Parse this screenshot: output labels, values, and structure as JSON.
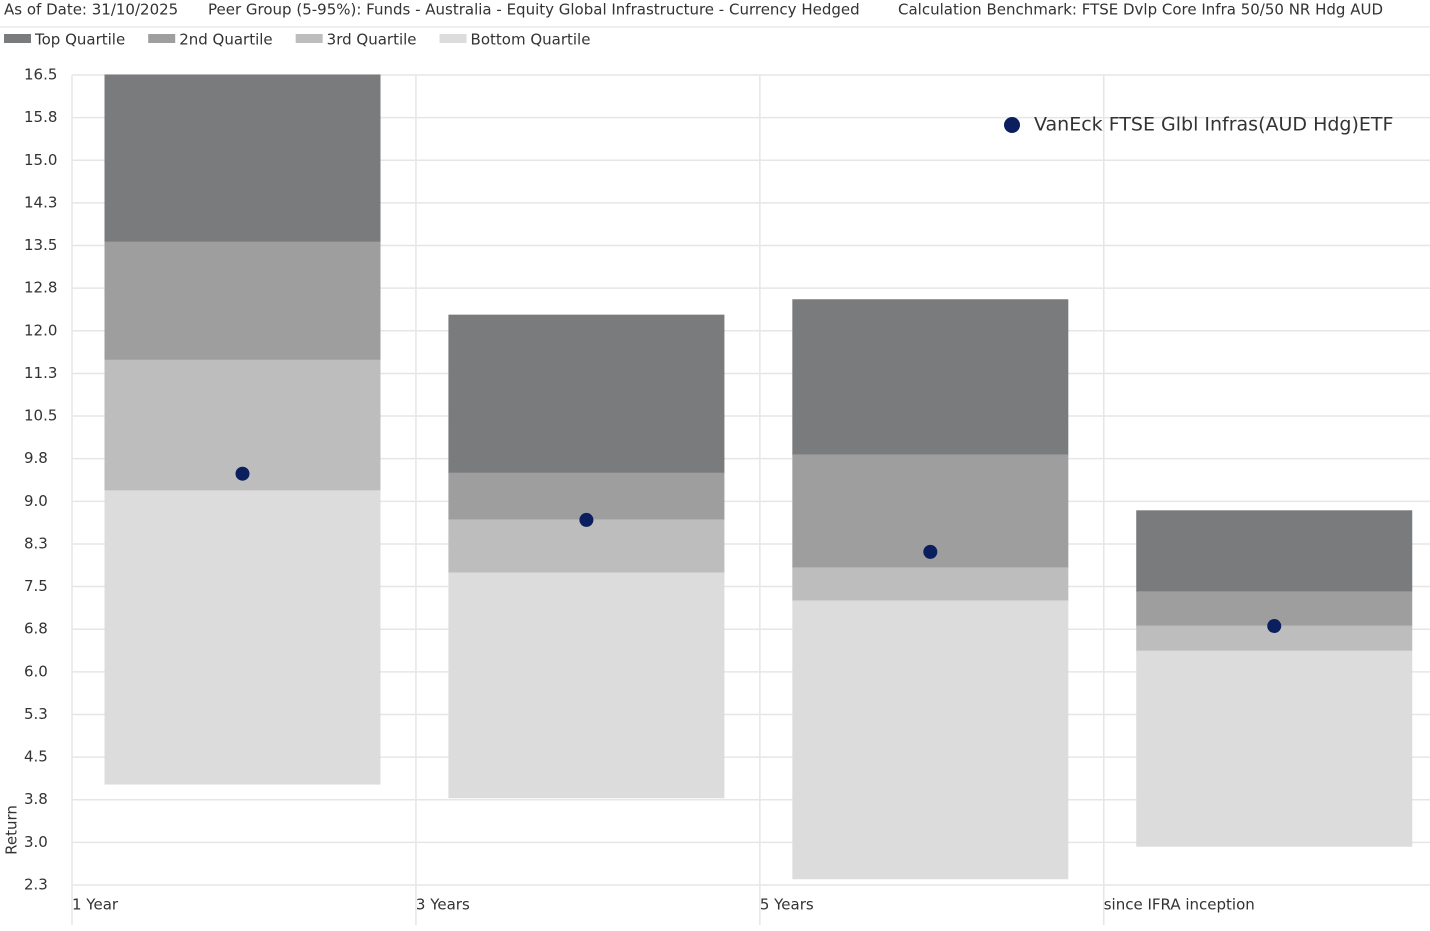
{
  "chart_data": {
    "type": "quartile",
    "header": [
      "As of Date: 31/10/2025",
      "Peer Group (5-95%): Funds - Australia - Equity Global Infrastructure - Currency Hedged",
      "Calculation Benchmark: FTSE Dvlp Core Infra 50/50 NR Hdg AUD"
    ],
    "y_label": "Return",
    "categories": [
      "1 Year",
      "3 Years",
      "5 Years",
      "since IFRA inception"
    ],
    "series": [
      {
        "name": "Top Quartile",
        "color": "#797b7d"
      },
      {
        "name": "2nd Quartile",
        "color": "#9e9e9f"
      },
      {
        "name": "3rd Quartile",
        "color": "#bdbdbd"
      },
      {
        "name": "Bottom Quartile",
        "color": "#dcdcdc"
      }
    ],
    "ranges": [
      [
        4.07,
        9.21,
        11.5,
        13.57,
        16.5
      ],
      [
        3.83,
        7.77,
        8.7,
        9.52,
        12.29
      ],
      [
        2.41,
        7.28,
        7.86,
        9.84,
        12.56
      ],
      [
        2.98,
        6.4,
        6.84,
        7.44,
        8.86
      ]
    ],
    "points": {
      "name": "VanEck FTSE Glbl Infras(AUD Hdg)ETF",
      "color": "#0b1f5e",
      "values": [
        9.51,
        8.7,
        8.14,
        6.84
      ]
    },
    "ylim": [
      2.3,
      16.5
    ],
    "yticks": [
      {
        "value": 2.3,
        "label": "2.3"
      },
      {
        "value": 3.047,
        "label": "3.0"
      },
      {
        "value": 3.795,
        "label": "3.8"
      },
      {
        "value": 4.542,
        "label": "4.5"
      },
      {
        "value": 5.289,
        "label": "5.3"
      },
      {
        "value": 6.037,
        "label": "6.0"
      },
      {
        "value": 6.784,
        "label": "6.8"
      },
      {
        "value": 7.532,
        "label": "7.5"
      },
      {
        "value": 8.279,
        "label": "8.3"
      },
      {
        "value": 9.026,
        "label": "9.0"
      },
      {
        "value": 9.774,
        "label": "9.8"
      },
      {
        "value": 10.521,
        "label": "10.5"
      },
      {
        "value": 11.268,
        "label": "11.3"
      },
      {
        "value": 12.016,
        "label": "12.0"
      },
      {
        "value": 12.763,
        "label": "12.8"
      },
      {
        "value": 13.511,
        "label": "13.5"
      },
      {
        "value": 14.258,
        "label": "14.3"
      },
      {
        "value": 15.005,
        "label": "15.0"
      },
      {
        "value": 15.753,
        "label": "15.8"
      },
      {
        "value": 16.5,
        "label": "16.5"
      }
    ],
    "grid": true
  }
}
